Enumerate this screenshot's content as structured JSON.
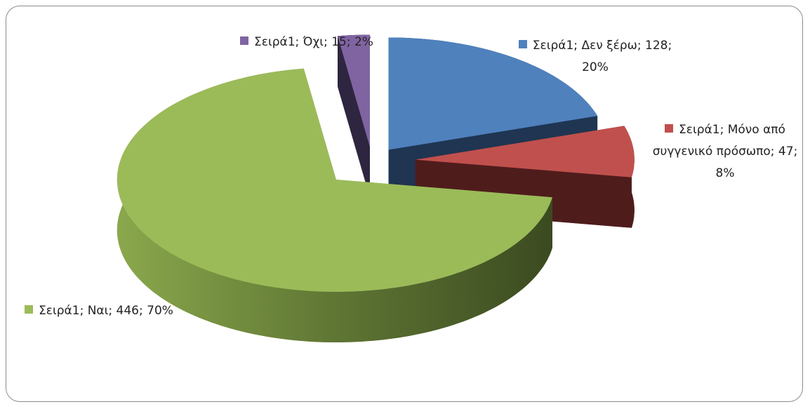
{
  "chart_data": {
    "type": "pie",
    "categories": [
      "Δεν ξέρω",
      "Μόνο από συγγενικό πρόσωπο",
      "Ναι",
      "Όχι"
    ],
    "series": [
      {
        "name": "Σειρά1",
        "values": [
          128,
          47,
          446,
          15
        ]
      }
    ],
    "percent_labels": [
      "20%",
      "8%",
      "70%",
      "2%"
    ],
    "separator": "; ",
    "colors": [
      "#4f81bd",
      "#c0504d",
      "#9bbb59",
      "#8064a2"
    ]
  }
}
